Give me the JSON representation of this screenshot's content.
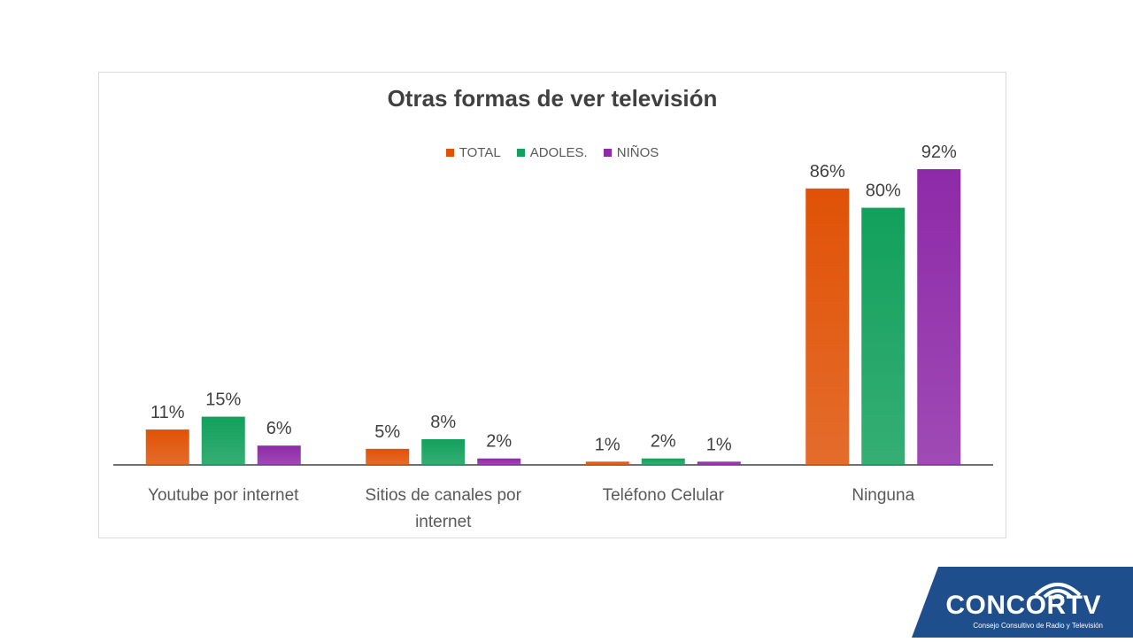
{
  "chart_data": {
    "type": "bar",
    "title": "Otras formas de ver televisión",
    "categories": [
      [
        "Youtube por internet"
      ],
      [
        "Sitios de canales por",
        "internet"
      ],
      [
        "Teléfono Celular"
      ],
      [
        "Ninguna"
      ]
    ],
    "series": [
      {
        "name": "TOTAL",
        "values": [
          11,
          5,
          1,
          86
        ],
        "labels": [
          "11%",
          "5%",
          "1%",
          "86%"
        ],
        "color": "#e05206"
      },
      {
        "name": "ADOLES.",
        "values": [
          15,
          8,
          2,
          80
        ],
        "labels": [
          "15%",
          "8%",
          "2%",
          "80%"
        ],
        "color": "#12a05c"
      },
      {
        "name": "NIÑOS",
        "values": [
          6,
          2,
          1,
          92
        ],
        "labels": [
          "6%",
          "2%",
          "1%",
          "92%"
        ],
        "color": "#8e2aa8"
      }
    ],
    "ylim": [
      0,
      100
    ],
    "legend_position": "top",
    "grid": false
  },
  "logo": {
    "name": "CONCORTV",
    "subtitle": "Consejo Consultivo de Radio y Televisión",
    "color": "#1e4f8c"
  }
}
